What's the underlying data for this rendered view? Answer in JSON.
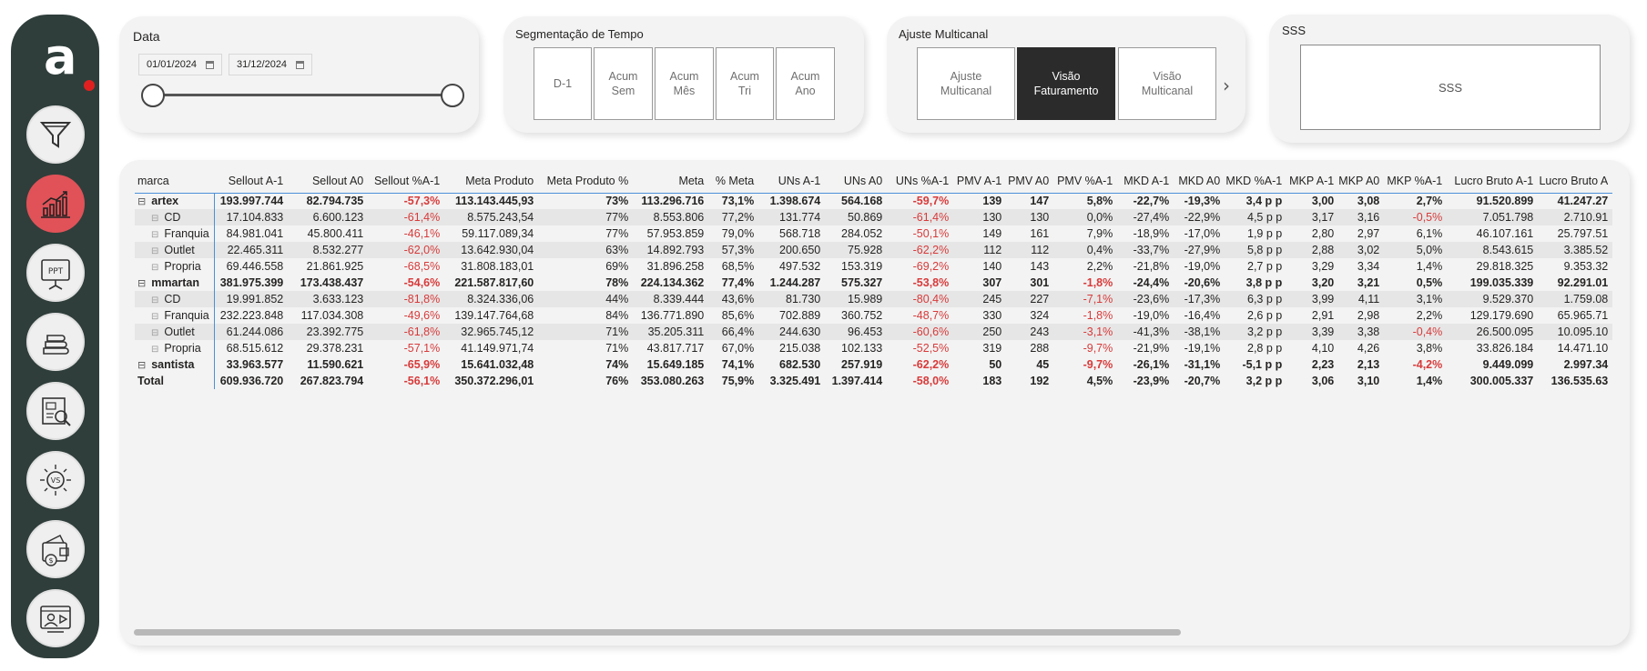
{
  "sidebar": {
    "logo_letter": "a",
    "items": [
      {
        "name": "filter-icon"
      },
      {
        "name": "growth-chart-icon",
        "active": true
      },
      {
        "name": "ppt-presentation-icon",
        "label": "PPT"
      },
      {
        "name": "stacked-fabric-icon"
      },
      {
        "name": "report-analysis-icon"
      },
      {
        "name": "versus-comparison-icon",
        "label": "VS"
      },
      {
        "name": "wallet-money-icon"
      },
      {
        "name": "user-video-icon"
      }
    ]
  },
  "data_slicer": {
    "title": "Data",
    "start_date": "01/01/2024",
    "end_date": "31/12/2024"
  },
  "time_slicer": {
    "title": "Segmentação de Tempo",
    "tiles": [
      [
        "D-1"
      ],
      [
        "Acum",
        "Sem"
      ],
      [
        "Acum",
        "Mês"
      ],
      [
        "Acum",
        "Tri"
      ],
      [
        "Acum",
        "Ano"
      ]
    ]
  },
  "multichannel": {
    "title": "Ajuste Multicanal",
    "tiles": [
      [
        "Ajuste",
        "Multicanal"
      ],
      [
        "Visão",
        "Faturamento"
      ],
      [
        "Visão",
        "Multicanal"
      ]
    ],
    "selected_index": 1
  },
  "sss": {
    "title": "SSS",
    "box_text": "SSS"
  },
  "matrix": {
    "columns": [
      "marca",
      "Sellout A-1",
      "Sellout A0",
      "Sellout %A-1",
      "Meta Produto",
      "Meta Produto %",
      "Meta",
      "% Meta",
      "UNs A-1",
      "UNs A0",
      "UNs %A-1",
      "PMV A-1",
      "PMV A0",
      "PMV %A-1",
      "MKD A-1",
      "MKD A0",
      "MKD %A-1",
      "MKP A-1",
      "MKP A0",
      "MKP %A-1",
      "Lucro Bruto A-1",
      "Lucro Bruto A"
    ],
    "negative_columns": [
      3,
      7,
      10,
      13,
      19
    ],
    "rows": [
      {
        "type": "brand",
        "cells": [
          "artex",
          "193.997.744",
          "82.794.735",
          "-57,3%",
          "113.143.445,93",
          "73%",
          "113.296.716",
          "73,1%",
          "1.398.674",
          "564.168",
          "-59,7%",
          "139",
          "147",
          "5,8%",
          "-22,7%",
          "-19,3%",
          "3,4 p p",
          "3,00",
          "3,08",
          "2,7%",
          "91.520.899",
          "41.247.27"
        ]
      },
      {
        "type": "child",
        "cells": [
          "CD",
          "17.104.833",
          "6.600.123",
          "-61,4%",
          "8.575.243,54",
          "77%",
          "8.553.806",
          "77,2%",
          "131.774",
          "50.869",
          "-61,4%",
          "130",
          "130",
          "0,0%",
          "-27,4%",
          "-22,9%",
          "4,5 p p",
          "3,17",
          "3,16",
          "-0,5%",
          "7.051.798",
          "2.710.91"
        ]
      },
      {
        "type": "child",
        "cells": [
          "Franquia",
          "84.981.041",
          "45.800.411",
          "-46,1%",
          "59.117.089,34",
          "77%",
          "57.953.859",
          "79,0%",
          "568.718",
          "284.052",
          "-50,1%",
          "149",
          "161",
          "7,9%",
          "-18,9%",
          "-17,0%",
          "1,9 p p",
          "2,80",
          "2,97",
          "6,1%",
          "46.107.161",
          "25.797.51"
        ]
      },
      {
        "type": "child",
        "cells": [
          "Outlet",
          "22.465.311",
          "8.532.277",
          "-62,0%",
          "13.642.930,04",
          "63%",
          "14.892.793",
          "57,3%",
          "200.650",
          "75.928",
          "-62,2%",
          "112",
          "112",
          "0,4%",
          "-33,7%",
          "-27,9%",
          "5,8 p p",
          "2,88",
          "3,02",
          "5,0%",
          "8.543.615",
          "3.385.52"
        ]
      },
      {
        "type": "child",
        "cells": [
          "Propria",
          "69.446.558",
          "21.861.925",
          "-68,5%",
          "31.808.183,01",
          "69%",
          "31.896.258",
          "68,5%",
          "497.532",
          "153.319",
          "-69,2%",
          "140",
          "143",
          "2,2%",
          "-21,8%",
          "-19,0%",
          "2,7 p p",
          "3,29",
          "3,34",
          "1,4%",
          "29.818.325",
          "9.353.32"
        ]
      },
      {
        "type": "brand",
        "cells": [
          "mmartan",
          "381.975.399",
          "173.438.437",
          "-54,6%",
          "221.587.817,60",
          "78%",
          "224.134.362",
          "77,4%",
          "1.244.287",
          "575.327",
          "-53,8%",
          "307",
          "301",
          "-1,8%",
          "-24,4%",
          "-20,6%",
          "3,8 p p",
          "3,20",
          "3,21",
          "0,5%",
          "199.035.339",
          "92.291.01"
        ]
      },
      {
        "type": "child",
        "cells": [
          "CD",
          "19.991.852",
          "3.633.123",
          "-81,8%",
          "8.324.336,06",
          "44%",
          "8.339.444",
          "43,6%",
          "81.730",
          "15.989",
          "-80,4%",
          "245",
          "227",
          "-7,1%",
          "-23,6%",
          "-17,3%",
          "6,3 p p",
          "3,99",
          "4,11",
          "3,1%",
          "9.529.370",
          "1.759.08"
        ]
      },
      {
        "type": "child",
        "cells": [
          "Franquia",
          "232.223.848",
          "117.034.308",
          "-49,6%",
          "139.147.764,68",
          "84%",
          "136.771.890",
          "85,6%",
          "702.889",
          "360.752",
          "-48,7%",
          "330",
          "324",
          "-1,8%",
          "-19,0%",
          "-16,4%",
          "2,6 p p",
          "2,91",
          "2,98",
          "2,2%",
          "129.179.690",
          "65.965.71"
        ]
      },
      {
        "type": "child",
        "cells": [
          "Outlet",
          "61.244.086",
          "23.392.775",
          "-61,8%",
          "32.965.745,12",
          "71%",
          "35.205.311",
          "66,4%",
          "244.630",
          "96.453",
          "-60,6%",
          "250",
          "243",
          "-3,1%",
          "-41,3%",
          "-38,1%",
          "3,2 p p",
          "3,39",
          "3,38",
          "-0,4%",
          "26.500.095",
          "10.095.10"
        ]
      },
      {
        "type": "child",
        "cells": [
          "Propria",
          "68.515.612",
          "29.378.231",
          "-57,1%",
          "41.149.971,74",
          "71%",
          "43.817.717",
          "67,0%",
          "215.038",
          "102.133",
          "-52,5%",
          "319",
          "288",
          "-9,7%",
          "-21,9%",
          "-19,1%",
          "2,8 p p",
          "4,10",
          "4,26",
          "3,8%",
          "33.826.184",
          "14.471.10"
        ]
      },
      {
        "type": "brand",
        "cells": [
          "santista",
          "33.963.577",
          "11.590.621",
          "-65,9%",
          "15.641.032,48",
          "74%",
          "15.649.185",
          "74,1%",
          "682.530",
          "257.919",
          "-62,2%",
          "50",
          "45",
          "-9,7%",
          "-26,1%",
          "-31,1%",
          "-5,1 p p",
          "2,23",
          "2,13",
          "-4,2%",
          "9.449.099",
          "2.997.34"
        ]
      },
      {
        "type": "total",
        "cells": [
          "Total",
          "609.936.720",
          "267.823.794",
          "-56,1%",
          "350.372.296,01",
          "76%",
          "353.080.263",
          "75,9%",
          "3.325.491",
          "1.397.414",
          "-58,0%",
          "183",
          "192",
          "4,5%",
          "-23,9%",
          "-20,7%",
          "3,2 p p",
          "3,06",
          "3,10",
          "1,4%",
          "300.005.337",
          "136.535.63"
        ]
      }
    ]
  }
}
